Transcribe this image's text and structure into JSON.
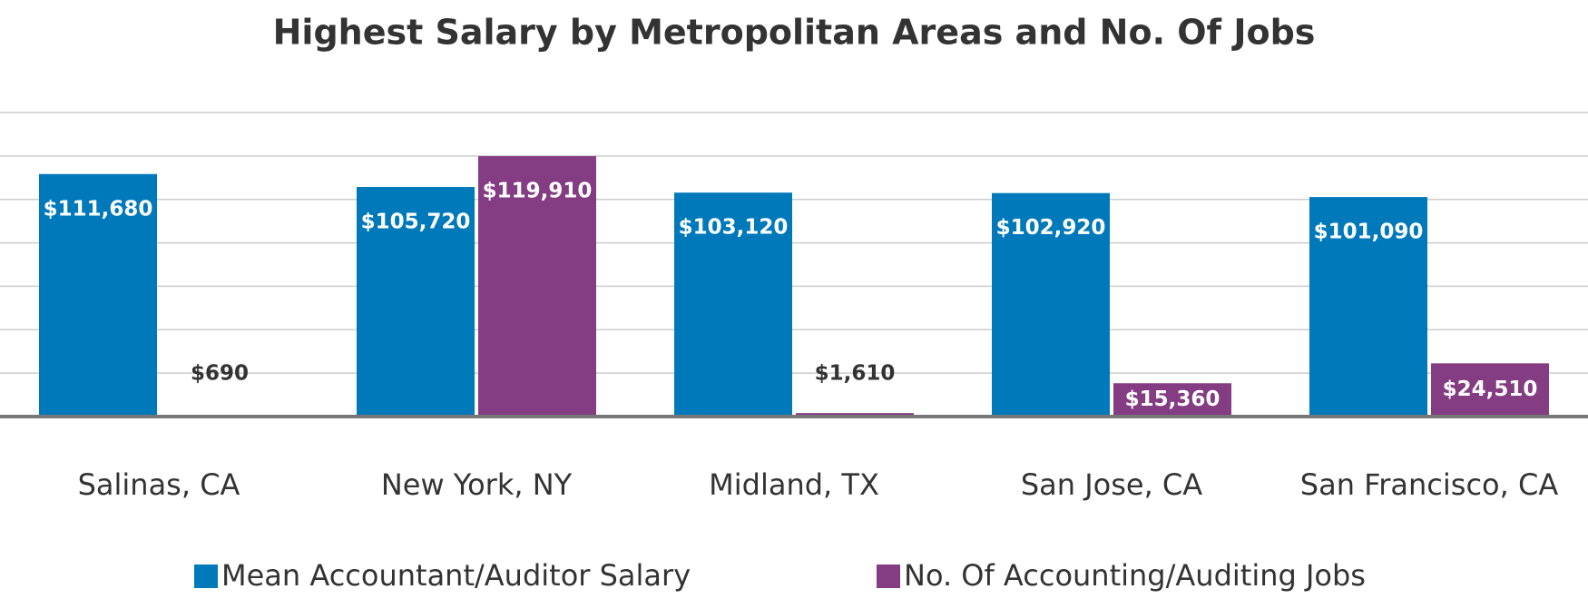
{
  "chart_data": {
    "type": "bar",
    "title": "Highest Salary by Metropolitan Areas and No. Of Jobs",
    "categories": [
      "Salinas, CA",
      "New York, NY",
      "Midland, TX",
      "San Jose, CA",
      "San Francisco, CA"
    ],
    "series": [
      {
        "name": "Mean Accountant/Auditor Salary",
        "color": "#0079bb",
        "values": [
          111680,
          105720,
          103120,
          102920,
          101090
        ],
        "value_labels": [
          "$111,680",
          "$105,720",
          "$103,120",
          "$102,920",
          "$101,090"
        ]
      },
      {
        "name": "No. Of Accounting/Auditing Jobs",
        "color": "#843c83",
        "values": [
          690,
          119910,
          1610,
          15360,
          24510
        ],
        "value_labels": [
          "$690",
          "$119,910",
          "$1,610",
          "$15,360",
          "$24,510"
        ]
      }
    ],
    "ylim": [
      0,
      140000
    ],
    "yticks": [
      0,
      20000,
      40000,
      60000,
      80000,
      100000,
      120000,
      140000
    ],
    "grid": true
  }
}
